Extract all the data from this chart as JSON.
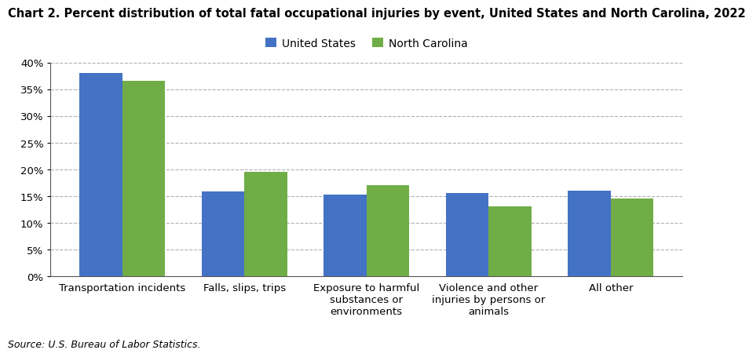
{
  "title": "Chart 2. Percent distribution of total fatal occupational injuries by event, United States and North Carolina, 2022",
  "categories": [
    "Transportation incidents",
    "Falls, slips, trips",
    "Exposure to harmful\nsubstances or\nenvironments",
    "Violence and other\ninjuries by persons or\nanimals",
    "All other"
  ],
  "us_values": [
    38.0,
    15.8,
    15.3,
    15.5,
    16.0
  ],
  "nc_values": [
    36.5,
    19.5,
    17.0,
    13.0,
    14.5
  ],
  "us_color": "#4472C4",
  "nc_color": "#70AD47",
  "ylim": [
    0,
    40
  ],
  "yticks": [
    0,
    5,
    10,
    15,
    20,
    25,
    30,
    35,
    40
  ],
  "legend_labels": [
    "United States",
    "North Carolina"
  ],
  "source": "Source: U.S. Bureau of Labor Statistics.",
  "background_color": "#ffffff",
  "grid_color": "#b0b0b0",
  "title_fontsize": 10.5,
  "tick_fontsize": 9.5,
  "legend_fontsize": 10,
  "source_fontsize": 9,
  "bar_width": 0.35
}
